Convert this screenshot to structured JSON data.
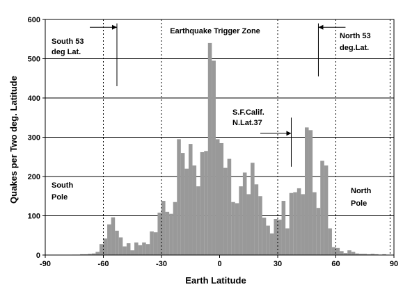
{
  "chart_data": {
    "type": "bar",
    "title": "",
    "xlabel": "Earth Latitude",
    "ylabel": "Quakes per Two deg. Latitude",
    "xlim": [
      -90,
      90
    ],
    "ylim": [
      0,
      600
    ],
    "xticks": [
      -90,
      -60,
      -30,
      0,
      30,
      60,
      90
    ],
    "yticks": [
      0,
      100,
      200,
      300,
      400,
      500,
      600
    ],
    "grid": "horizontal",
    "bar_color": "#999999",
    "bin_width": 2,
    "bins": [
      {
        "x": -89,
        "v": 0
      },
      {
        "x": -87,
        "v": 0
      },
      {
        "x": -85,
        "v": 0
      },
      {
        "x": -83,
        "v": 0
      },
      {
        "x": -81,
        "v": 0
      },
      {
        "x": -79,
        "v": 0
      },
      {
        "x": -77,
        "v": 0
      },
      {
        "x": -75,
        "v": 1
      },
      {
        "x": -73,
        "v": 1
      },
      {
        "x": -71,
        "v": 2
      },
      {
        "x": -69,
        "v": 2
      },
      {
        "x": -67,
        "v": 3
      },
      {
        "x": -65,
        "v": 4
      },
      {
        "x": -63,
        "v": 8
      },
      {
        "x": -61,
        "v": 28
      },
      {
        "x": -59,
        "v": 42
      },
      {
        "x": -57,
        "v": 78
      },
      {
        "x": -55,
        "v": 96
      },
      {
        "x": -53,
        "v": 62
      },
      {
        "x": -51,
        "v": 45
      },
      {
        "x": -49,
        "v": 22
      },
      {
        "x": -47,
        "v": 30
      },
      {
        "x": -45,
        "v": 12
      },
      {
        "x": -43,
        "v": 32
      },
      {
        "x": -41,
        "v": 25
      },
      {
        "x": -39,
        "v": 32
      },
      {
        "x": -37,
        "v": 28
      },
      {
        "x": -35,
        "v": 60
      },
      {
        "x": -33,
        "v": 58
      },
      {
        "x": -31,
        "v": 108
      },
      {
        "x": -29,
        "v": 138
      },
      {
        "x": -27,
        "v": 110
      },
      {
        "x": -25,
        "v": 105
      },
      {
        "x": -23,
        "v": 135
      },
      {
        "x": -21,
        "v": 295
      },
      {
        "x": -19,
        "v": 260
      },
      {
        "x": -17,
        "v": 220
      },
      {
        "x": -15,
        "v": 283
      },
      {
        "x": -13,
        "v": 228
      },
      {
        "x": -11,
        "v": 175
      },
      {
        "x": -9,
        "v": 262
      },
      {
        "x": -7,
        "v": 265
      },
      {
        "x": -5,
        "v": 540
      },
      {
        "x": -3,
        "v": 495
      },
      {
        "x": -1,
        "v": 295
      },
      {
        "x": 1,
        "v": 285
      },
      {
        "x": 3,
        "v": 222
      },
      {
        "x": 5,
        "v": 245
      },
      {
        "x": 7,
        "v": 135
      },
      {
        "x": 9,
        "v": 132
      },
      {
        "x": 11,
        "v": 175
      },
      {
        "x": 13,
        "v": 210
      },
      {
        "x": 15,
        "v": 155
      },
      {
        "x": 17,
        "v": 235
      },
      {
        "x": 19,
        "v": 180
      },
      {
        "x": 21,
        "v": 150
      },
      {
        "x": 23,
        "v": 95
      },
      {
        "x": 25,
        "v": 75
      },
      {
        "x": 27,
        "v": 55
      },
      {
        "x": 29,
        "v": 92
      },
      {
        "x": 31,
        "v": 90
      },
      {
        "x": 33,
        "v": 138
      },
      {
        "x": 35,
        "v": 68
      },
      {
        "x": 37,
        "v": 158
      },
      {
        "x": 39,
        "v": 160
      },
      {
        "x": 41,
        "v": 170
      },
      {
        "x": 43,
        "v": 155
      },
      {
        "x": 45,
        "v": 325
      },
      {
        "x": 47,
        "v": 318
      },
      {
        "x": 49,
        "v": 160
      },
      {
        "x": 51,
        "v": 120
      },
      {
        "x": 53,
        "v": 240
      },
      {
        "x": 55,
        "v": 228
      },
      {
        "x": 57,
        "v": 68
      },
      {
        "x": 59,
        "v": 20
      },
      {
        "x": 61,
        "v": 18
      },
      {
        "x": 63,
        "v": 10
      },
      {
        "x": 65,
        "v": 5
      },
      {
        "x": 67,
        "v": 12
      },
      {
        "x": 69,
        "v": 8
      },
      {
        "x": 71,
        "v": 4
      },
      {
        "x": 73,
        "v": 3
      },
      {
        "x": 75,
        "v": 3
      },
      {
        "x": 77,
        "v": 2
      },
      {
        "x": 79,
        "v": 3
      },
      {
        "x": 81,
        "v": 2
      },
      {
        "x": 83,
        "v": 1
      },
      {
        "x": 85,
        "v": 2
      },
      {
        "x": 87,
        "v": 0
      },
      {
        "x": 89,
        "v": 0
      }
    ],
    "reference_lines": [
      {
        "x": -60
      },
      {
        "x": -30
      },
      {
        "x": 30
      },
      {
        "x": 60
      },
      {
        "x": 88
      }
    ],
    "annotations": [
      {
        "id": "south53",
        "lines": [
          "South 53",
          "deg Lat."
        ],
        "marker_x": -53,
        "marker_y": [
          430,
          590
        ],
        "arrow_from_x": -67,
        "arrow_to_x": -53,
        "arrow_y": 580
      },
      {
        "id": "north53",
        "lines": [
          "North 53",
          "deg.Lat."
        ],
        "marker_x": 51,
        "marker_y": [
          455,
          590
        ],
        "arrow_from_x": 65,
        "arrow_to_x": 51,
        "arrow_y": 580
      },
      {
        "id": "sfcalif",
        "lines": [
          "S.F.Calif.",
          "N.Lat.37"
        ],
        "marker_x": 37,
        "marker_y": [
          225,
          350
        ],
        "arrow_from_x": 21,
        "arrow_to_x": 37,
        "arrow_y": 310
      },
      {
        "id": "trigger",
        "lines": [
          "Earthquake Trigger Zone"
        ]
      },
      {
        "id": "southpole",
        "lines": [
          "South",
          "Pole"
        ]
      },
      {
        "id": "northpole",
        "lines": [
          "North",
          "Pole"
        ]
      }
    ]
  }
}
